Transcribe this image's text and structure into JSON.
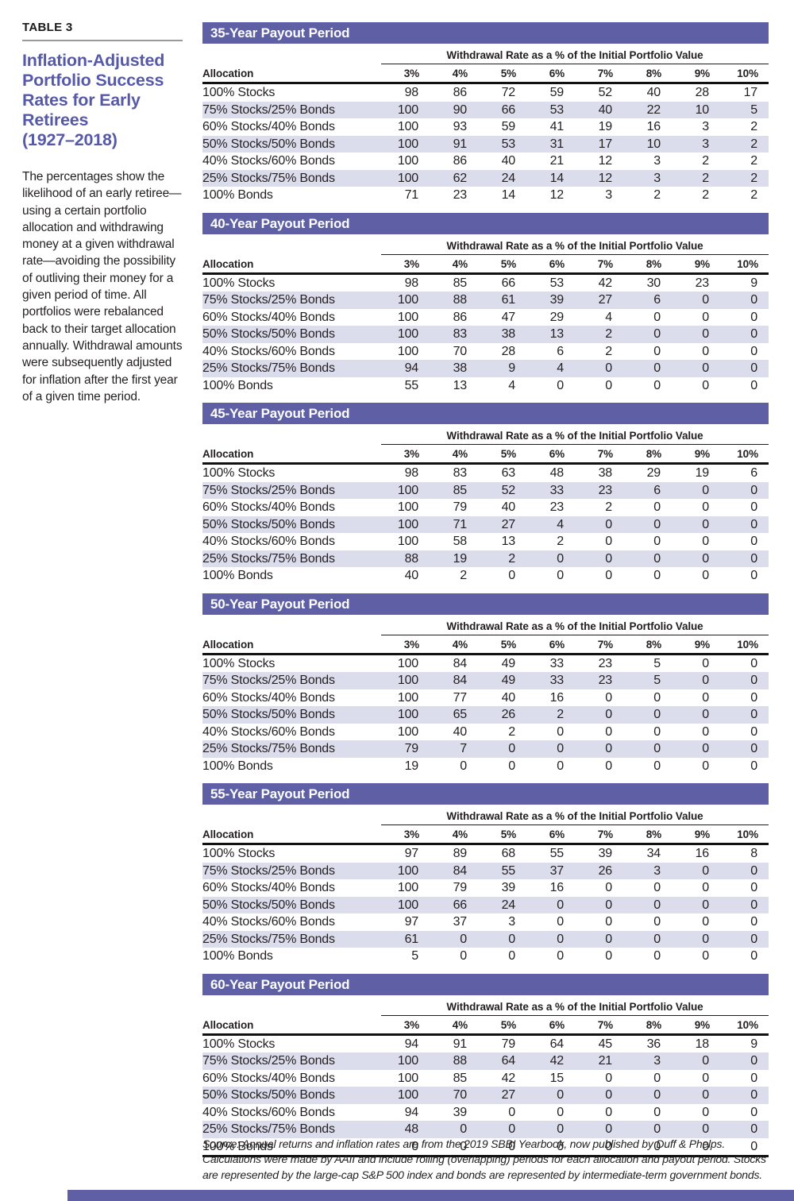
{
  "colors": {
    "header_bar": "#5e5fa5",
    "row_stripe": "#dcddec",
    "sidebar_title": "#5659a8",
    "body_text": "#231f20"
  },
  "sidebar": {
    "table_label": "TABLE 3",
    "title_lines": [
      "Inflation-Adjusted",
      "Portfolio Success",
      "Rates for Early",
      "Retirees",
      "(1927–2018)"
    ],
    "description": "The percentages show the likelihood of an early retiree—using a certain portfolio allocation and withdrawing money at a given withdrawal rate—avoiding the possibility of outliving their money for a given period of time. All portfolios were rebalanced back to their target allocation annually. Withdrawal amounts were subsequently adjusted for inflation after the first year of a given time period."
  },
  "headers": {
    "group": "Withdrawal Rate as a % of the Initial Portfolio Value",
    "allocation": "Allocation",
    "rates": [
      "3%",
      "4%",
      "5%",
      "6%",
      "7%",
      "8%",
      "9%",
      "10%"
    ]
  },
  "tables": [
    {
      "title": "35-Year Payout Period",
      "rows": [
        {
          "allocation": "100% Stocks",
          "values": [
            98,
            86,
            72,
            59,
            52,
            40,
            28,
            17
          ]
        },
        {
          "allocation": "75% Stocks/25% Bonds",
          "values": [
            100,
            90,
            66,
            53,
            40,
            22,
            10,
            5
          ]
        },
        {
          "allocation": "60% Stocks/40% Bonds",
          "values": [
            100,
            93,
            59,
            41,
            19,
            16,
            3,
            2
          ]
        },
        {
          "allocation": "50% Stocks/50% Bonds",
          "values": [
            100,
            91,
            53,
            31,
            17,
            10,
            3,
            2
          ]
        },
        {
          "allocation": "40% Stocks/60% Bonds",
          "values": [
            100,
            86,
            40,
            21,
            12,
            3,
            2,
            2
          ]
        },
        {
          "allocation": "25% Stocks/75% Bonds",
          "values": [
            100,
            62,
            24,
            14,
            12,
            3,
            2,
            2
          ]
        },
        {
          "allocation": "100% Bonds",
          "values": [
            71,
            23,
            14,
            12,
            3,
            2,
            2,
            2
          ]
        }
      ]
    },
    {
      "title": "40-Year Payout Period",
      "rows": [
        {
          "allocation": "100% Stocks",
          "values": [
            98,
            85,
            66,
            53,
            42,
            30,
            23,
            9
          ]
        },
        {
          "allocation": "75% Stocks/25% Bonds",
          "values": [
            100,
            88,
            61,
            39,
            27,
            6,
            0,
            0
          ]
        },
        {
          "allocation": "60% Stocks/40% Bonds",
          "values": [
            100,
            86,
            47,
            29,
            4,
            0,
            0,
            0
          ]
        },
        {
          "allocation": "50% Stocks/50% Bonds",
          "values": [
            100,
            83,
            38,
            13,
            2,
            0,
            0,
            0
          ]
        },
        {
          "allocation": "40% Stocks/60% Bonds",
          "values": [
            100,
            70,
            28,
            6,
            2,
            0,
            0,
            0
          ]
        },
        {
          "allocation": "25% Stocks/75% Bonds",
          "values": [
            94,
            38,
            9,
            4,
            0,
            0,
            0,
            0
          ]
        },
        {
          "allocation": "100% Bonds",
          "values": [
            55,
            13,
            4,
            0,
            0,
            0,
            0,
            0
          ]
        }
      ]
    },
    {
      "title": "45-Year Payout Period",
      "rows": [
        {
          "allocation": "100% Stocks",
          "values": [
            98,
            83,
            63,
            48,
            38,
            29,
            19,
            6
          ]
        },
        {
          "allocation": "75% Stocks/25% Bonds",
          "values": [
            100,
            85,
            52,
            33,
            23,
            6,
            0,
            0
          ]
        },
        {
          "allocation": "60% Stocks/40% Bonds",
          "values": [
            100,
            79,
            40,
            23,
            2,
            0,
            0,
            0
          ]
        },
        {
          "allocation": "50% Stocks/50% Bonds",
          "values": [
            100,
            71,
            27,
            4,
            0,
            0,
            0,
            0
          ]
        },
        {
          "allocation": "40% Stocks/60% Bonds",
          "values": [
            100,
            58,
            13,
            2,
            0,
            0,
            0,
            0
          ]
        },
        {
          "allocation": "25% Stocks/75% Bonds",
          "values": [
            88,
            19,
            2,
            0,
            0,
            0,
            0,
            0
          ]
        },
        {
          "allocation": "100% Bonds",
          "values": [
            40,
            2,
            0,
            0,
            0,
            0,
            0,
            0
          ]
        }
      ]
    },
    {
      "title": "50-Year Payout Period",
      "rows": [
        {
          "allocation": "100% Stocks",
          "values": [
            100,
            84,
            49,
            33,
            23,
            5,
            0,
            0
          ]
        },
        {
          "allocation": "75% Stocks/25% Bonds",
          "values": [
            100,
            84,
            49,
            33,
            23,
            5,
            0,
            0
          ]
        },
        {
          "allocation": "60% Stocks/40% Bonds",
          "values": [
            100,
            77,
            40,
            16,
            0,
            0,
            0,
            0
          ]
        },
        {
          "allocation": "50% Stocks/50% Bonds",
          "values": [
            100,
            65,
            26,
            2,
            0,
            0,
            0,
            0
          ]
        },
        {
          "allocation": "40% Stocks/60% Bonds",
          "values": [
            100,
            40,
            2,
            0,
            0,
            0,
            0,
            0
          ]
        },
        {
          "allocation": "25% Stocks/75% Bonds",
          "values": [
            79,
            7,
            0,
            0,
            0,
            0,
            0,
            0
          ]
        },
        {
          "allocation": "100% Bonds",
          "values": [
            19,
            0,
            0,
            0,
            0,
            0,
            0,
            0
          ]
        }
      ]
    },
    {
      "title": "55-Year Payout Period",
      "rows": [
        {
          "allocation": "100% Stocks",
          "values": [
            97,
            89,
            68,
            55,
            39,
            34,
            16,
            8
          ]
        },
        {
          "allocation": "75% Stocks/25% Bonds",
          "values": [
            100,
            84,
            55,
            37,
            26,
            3,
            0,
            0
          ]
        },
        {
          "allocation": "60% Stocks/40% Bonds",
          "values": [
            100,
            79,
            39,
            16,
            0,
            0,
            0,
            0
          ]
        },
        {
          "allocation": "50% Stocks/50% Bonds",
          "values": [
            100,
            66,
            24,
            0,
            0,
            0,
            0,
            0
          ]
        },
        {
          "allocation": "40% Stocks/60% Bonds",
          "values": [
            97,
            37,
            3,
            0,
            0,
            0,
            0,
            0
          ]
        },
        {
          "allocation": "25% Stocks/75% Bonds",
          "values": [
            61,
            0,
            0,
            0,
            0,
            0,
            0,
            0
          ]
        },
        {
          "allocation": "100% Bonds",
          "values": [
            5,
            0,
            0,
            0,
            0,
            0,
            0,
            0
          ]
        }
      ]
    },
    {
      "title": "60-Year Payout Period",
      "rows": [
        {
          "allocation": "100% Stocks",
          "values": [
            94,
            91,
            79,
            64,
            45,
            36,
            18,
            9
          ]
        },
        {
          "allocation": "75% Stocks/25% Bonds",
          "values": [
            100,
            88,
            64,
            42,
            21,
            3,
            0,
            0
          ]
        },
        {
          "allocation": "60% Stocks/40% Bonds",
          "values": [
            100,
            85,
            42,
            15,
            0,
            0,
            0,
            0
          ]
        },
        {
          "allocation": "50% Stocks/50% Bonds",
          "values": [
            100,
            70,
            27,
            0,
            0,
            0,
            0,
            0
          ]
        },
        {
          "allocation": "40% Stocks/60% Bonds",
          "values": [
            94,
            39,
            0,
            0,
            0,
            0,
            0,
            0
          ]
        },
        {
          "allocation": "25% Stocks/75% Bonds",
          "values": [
            48,
            0,
            0,
            0,
            0,
            0,
            0,
            0
          ]
        },
        {
          "allocation": "100% Bonds",
          "values": [
            0,
            0,
            0,
            0,
            0,
            0,
            0,
            0
          ]
        }
      ]
    }
  ],
  "source_note": "Source: Annual returns and inflation rates are from the 2019 SBBI Yearbook, now published by Duff & Phelps. Calculations were made by AAII and include rolling (overlapping) periods for each allocation and payout period. Stocks are represented by the large-cap S&P 500 index and bonds are represented by intermediate-term government bonds."
}
